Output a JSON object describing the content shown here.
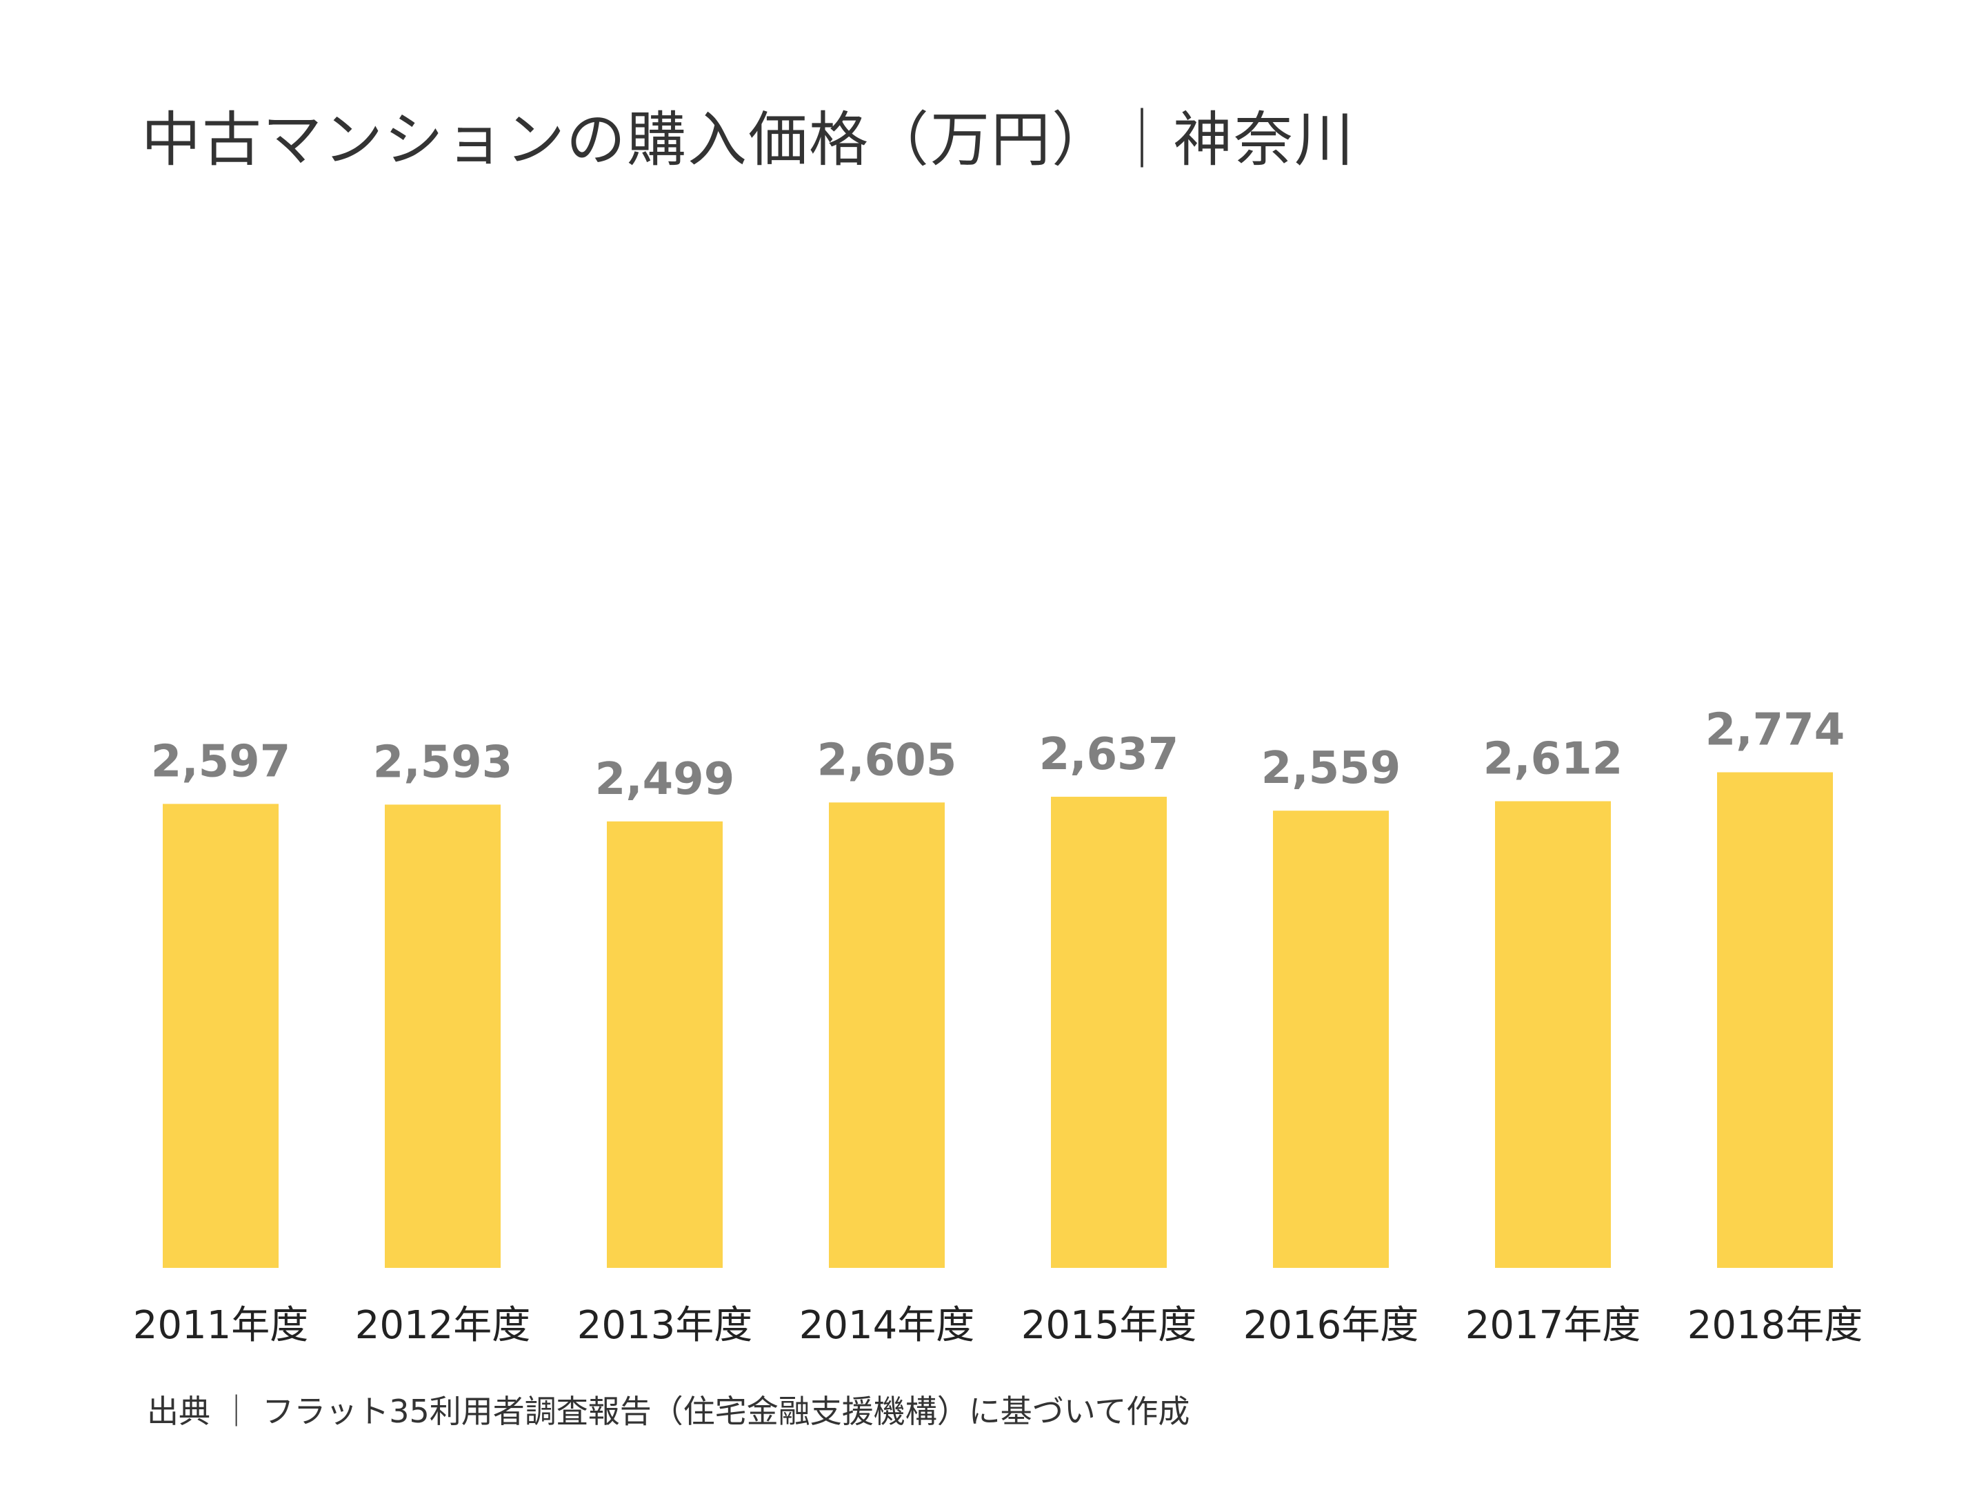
{
  "chart_data": {
    "type": "bar",
    "title": "中古マンションの購入価格（万円）｜神奈川",
    "categories": [
      "2011年度",
      "2012年度",
      "2013年度",
      "2014年度",
      "2015年度",
      "2016年度",
      "2017年度",
      "2018年度"
    ],
    "values": [
      2597,
      2593,
      2499,
      2605,
      2637,
      2559,
      2612,
      2774
    ],
    "value_labels": [
      "2,597",
      "2,593",
      "2,499",
      "2,605",
      "2,637",
      "2,559",
      "2,612",
      "2,774"
    ],
    "xlabel": "",
    "ylabel": "",
    "grid": false,
    "colors": {
      "bar": "#FCD34D",
      "value_label": "#808080",
      "category_label": "#222222"
    }
  },
  "source_note": "出典 ｜ フラット35利用者調査報告（住宅金融支援機構）に基づいて作成"
}
